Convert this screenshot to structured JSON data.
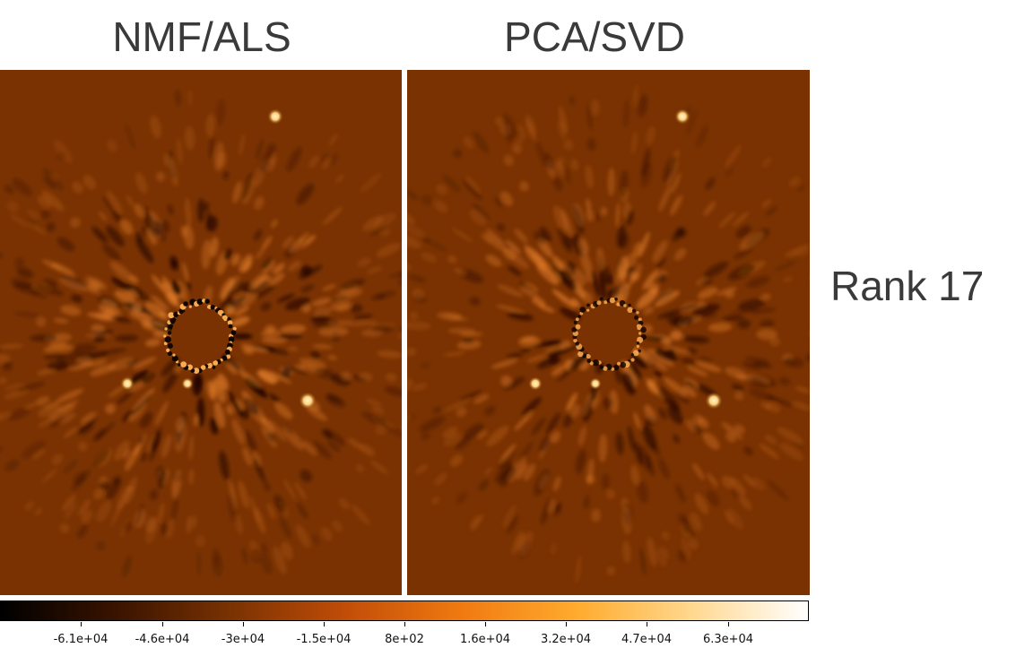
{
  "panels": [
    {
      "title": "NMF/ALS",
      "residual_style": "strong"
    },
    {
      "title": "PCA/SVD",
      "residual_style": "soft"
    }
  ],
  "row_label": "Rank 17",
  "colorbar": {
    "colormap": "afmhot",
    "stops": [
      "#000000",
      "#3a1300",
      "#7a3202",
      "#c24d08",
      "#f07a10",
      "#ffab2e",
      "#ffd890",
      "#ffffff"
    ],
    "ticks": [
      "-6.1e+04",
      "-4.6e+04",
      "-3e+04",
      "-1.5e+04",
      "8e+02",
      "1.6e+04",
      "3.2e+04",
      "4.7e+04",
      "6.3e+04"
    ]
  },
  "colors": {
    "background_residual": "#7a3202",
    "bright_source": "#ffd37a",
    "dark_speckle": "#1a0700"
  }
}
